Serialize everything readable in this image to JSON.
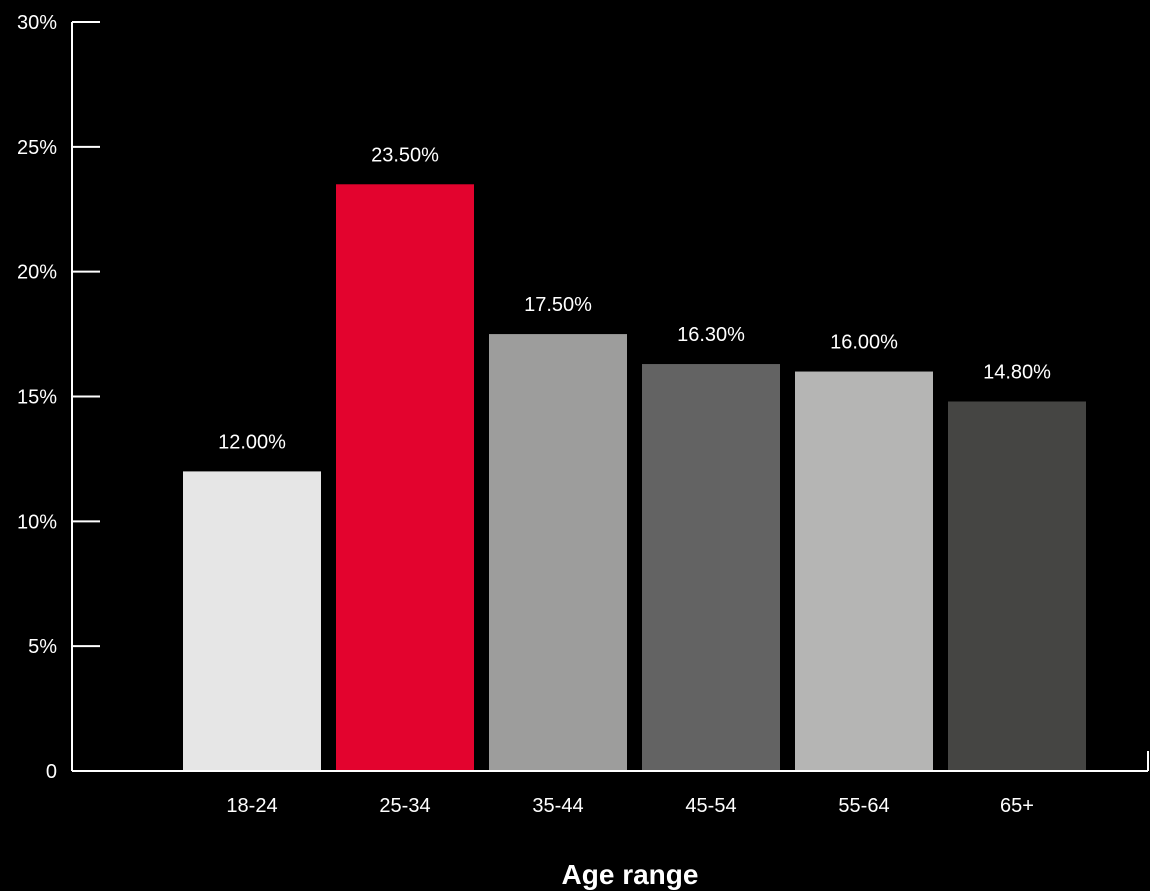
{
  "chart_data": {
    "type": "bar",
    "title": "",
    "xlabel": "Age range",
    "ylabel": "",
    "categories": [
      "18-24",
      "25-34",
      "35-44",
      "45-54",
      "55-64",
      "65+"
    ],
    "values": [
      12.0,
      23.5,
      17.5,
      16.3,
      16.0,
      14.8
    ],
    "value_labels": [
      "12.00%",
      "23.50%",
      "17.50%",
      "16.30%",
      "16.00%",
      "14.80%"
    ],
    "bar_colors": [
      "#e6e6e6",
      "#e3032e",
      "#9d9d9c",
      "#636363",
      "#b5b5b4",
      "#454543"
    ],
    "ylim": [
      0,
      30
    ],
    "yticks": [
      0,
      5,
      10,
      15,
      20,
      25,
      30
    ],
    "ytick_labels": [
      "0",
      "5%",
      "10%",
      "15%",
      "20%",
      "25%",
      "30%"
    ],
    "grid": false,
    "legend": "none",
    "background_color": "#000000",
    "axis_color": "#ffffff",
    "text_color": "#ffffff"
  }
}
